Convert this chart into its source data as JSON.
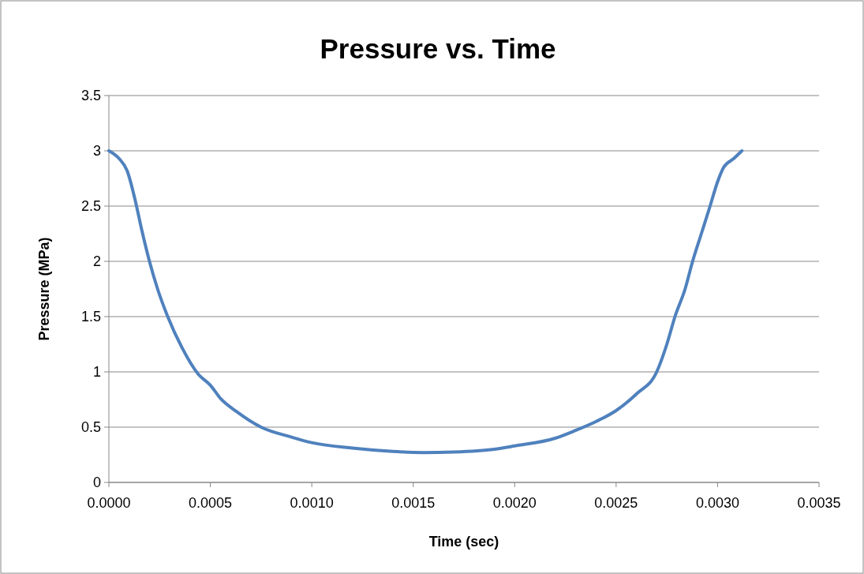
{
  "chart_data": {
    "type": "line",
    "title": "Pressure vs. Time",
    "xlabel": "Time (sec)",
    "ylabel": "Pressure (MPa)",
    "xlim": [
      0,
      0.0035
    ],
    "ylim": [
      0,
      3.5
    ],
    "xticks": [
      {
        "value": 0,
        "label": "0.0000"
      },
      {
        "value": 0.0005,
        "label": "0.0005"
      },
      {
        "value": 0.001,
        "label": "0.0010"
      },
      {
        "value": 0.0015,
        "label": "0.0015"
      },
      {
        "value": 0.002,
        "label": "0.0020"
      },
      {
        "value": 0.0025,
        "label": "0.0025"
      },
      {
        "value": 0.003,
        "label": "0.0030"
      },
      {
        "value": 0.0035,
        "label": "0.0035"
      }
    ],
    "yticks": [
      0,
      0.5,
      1,
      1.5,
      2,
      2.5,
      3,
      3.5
    ],
    "grid": "y",
    "marker": "none",
    "line_style": "solid",
    "series": [
      {
        "color": "#4f81bd",
        "x": [
          0,
          5e-05,
          9e-05,
          0.00013,
          0.00016,
          0.0002,
          0.00024,
          0.00029,
          0.00036,
          0.00044,
          0.0005,
          0.00055,
          0.00063,
          0.00075,
          0.0009,
          0.001,
          0.0012,
          0.0014,
          0.00155,
          0.0017,
          0.0019,
          0.002,
          0.0022,
          0.0023,
          0.0024,
          0.0025,
          0.0026,
          0.0027,
          0.00275,
          0.00279,
          0.00284,
          0.002877,
          0.00292,
          0.002963,
          0.003,
          0.00303,
          0.00308,
          0.00312
        ],
        "values": [
          3,
          2.93,
          2.82,
          2.55,
          2.3,
          2,
          1.75,
          1.5,
          1.22,
          0.98,
          0.88,
          0.76,
          0.64,
          0.5,
          0.41,
          0.36,
          0.31,
          0.28,
          0.27,
          0.275,
          0.3,
          0.33,
          0.4,
          0.47,
          0.55,
          0.65,
          0.8,
          1,
          1.25,
          1.5,
          1.75,
          2,
          2.25,
          2.5,
          2.72,
          2.85,
          2.93,
          3
        ]
      }
    ]
  }
}
